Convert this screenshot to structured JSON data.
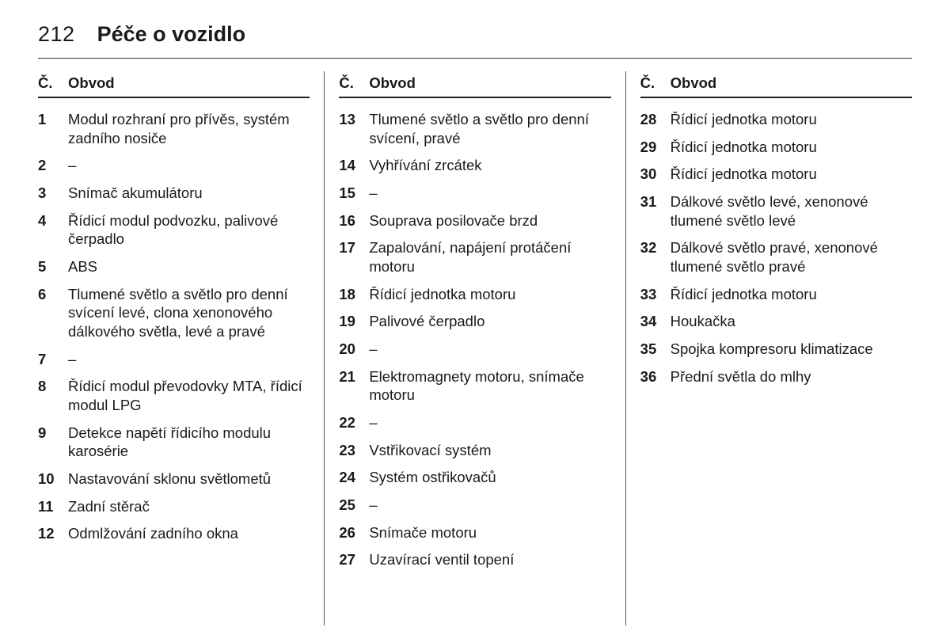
{
  "page": {
    "number": "212",
    "title": "Péče o vozidlo"
  },
  "headers": {
    "num": "Č.",
    "label": "Obvod"
  },
  "columns": [
    {
      "items": [
        {
          "n": "1",
          "d": "Modul rozhraní pro přívěs, systém zadního nosiče"
        },
        {
          "n": "2",
          "d": "–"
        },
        {
          "n": "3",
          "d": "Snímač akumulátoru"
        },
        {
          "n": "4",
          "d": "Řídicí modul podvozku, palivové čerpadlo"
        },
        {
          "n": "5",
          "d": "ABS"
        },
        {
          "n": "6",
          "d": "Tlumené světlo a světlo pro denní svícení levé, clona xeno­nového dálkového světla, levé a pravé"
        },
        {
          "n": "7",
          "d": "–"
        },
        {
          "n": "8",
          "d": "Řídicí modul převodovky MTA, řídicí modul LPG"
        },
        {
          "n": "9",
          "d": "Detekce napětí řídicího modulu karosérie"
        },
        {
          "n": "10",
          "d": "Nastavování sklonu světlometů"
        },
        {
          "n": "11",
          "d": "Zadní stěrač"
        },
        {
          "n": "12",
          "d": "Odmlžování zadního okna"
        }
      ]
    },
    {
      "items": [
        {
          "n": "13",
          "d": "Tlumené světlo a světlo pro denní svícení, pravé"
        },
        {
          "n": "14",
          "d": "Vyhřívání zrcátek"
        },
        {
          "n": "15",
          "d": "–"
        },
        {
          "n": "16",
          "d": "Souprava posilovače brzd"
        },
        {
          "n": "17",
          "d": "Zapalování, napájení protáčení motoru"
        },
        {
          "n": "18",
          "d": "Řídicí jednotka motoru"
        },
        {
          "n": "19",
          "d": "Palivové čerpadlo"
        },
        {
          "n": "20",
          "d": "–"
        },
        {
          "n": "21",
          "d": "Elektromagnety motoru, snímače motoru"
        },
        {
          "n": "22",
          "d": "–"
        },
        {
          "n": "23",
          "d": "Vstřikovací systém"
        },
        {
          "n": "24",
          "d": "Systém ostřikovačů"
        },
        {
          "n": "25",
          "d": "–"
        },
        {
          "n": "26",
          "d": "Snímače motoru"
        },
        {
          "n": "27",
          "d": "Uzavírací ventil topení"
        }
      ]
    },
    {
      "items": [
        {
          "n": "28",
          "d": "Řídicí jednotka motoru"
        },
        {
          "n": "29",
          "d": "Řídicí jednotka motoru"
        },
        {
          "n": "30",
          "d": "Řídicí jednotka motoru"
        },
        {
          "n": "31",
          "d": "Dálkové světlo levé, xenonové tlumené světlo levé"
        },
        {
          "n": "32",
          "d": "Dálkové světlo pravé, xenonové tlumené světlo pravé"
        },
        {
          "n": "33",
          "d": "Řídicí jednotka motoru"
        },
        {
          "n": "34",
          "d": "Houkačka"
        },
        {
          "n": "35",
          "d": "Spojka kompresoru klimatizace"
        },
        {
          "n": "36",
          "d": "Přední světla do mlhy"
        }
      ]
    }
  ]
}
